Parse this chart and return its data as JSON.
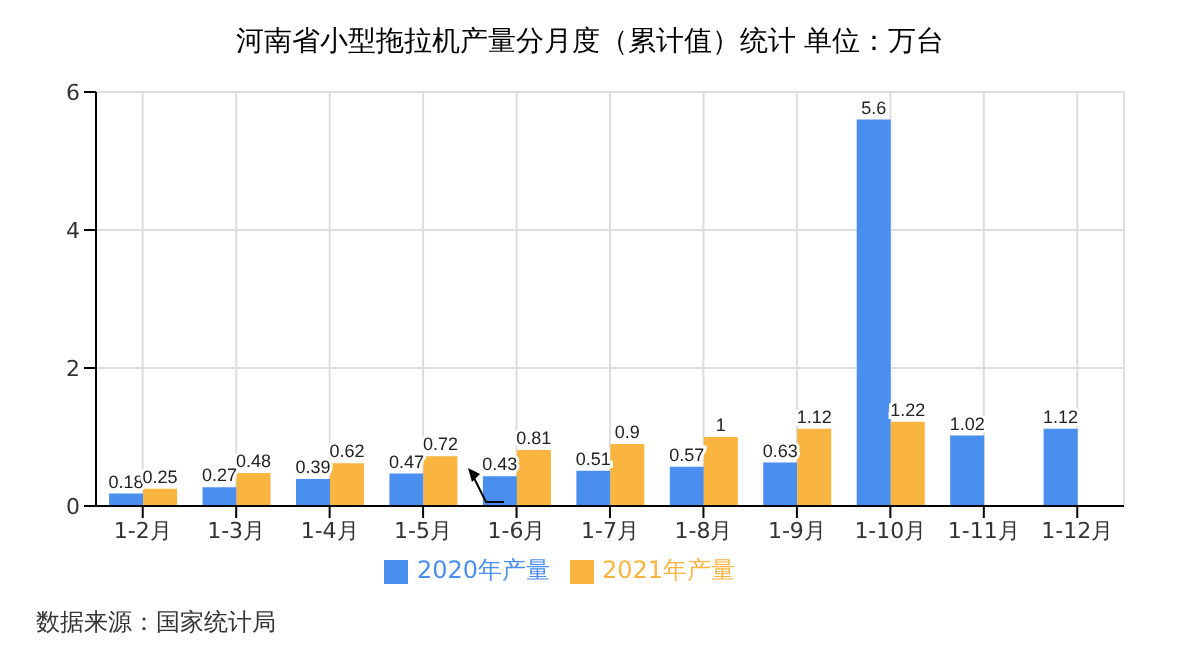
{
  "chart_data": {
    "type": "bar",
    "title": "河南省小型拖拉机产量分月度（累计值）统计 单位：万台",
    "categories": [
      "1-2月",
      "1-3月",
      "1-4月",
      "1-5月",
      "1-6月",
      "1-7月",
      "1-8月",
      "1-9月",
      "1-10月",
      "1-11月",
      "1-12月"
    ],
    "series": [
      {
        "name": "2020年产量",
        "color": "#4a8ef0",
        "values": [
          0.18,
          0.27,
          0.39,
          0.47,
          0.43,
          0.51,
          0.57,
          0.63,
          5.6,
          1.02,
          1.12
        ]
      },
      {
        "name": "2021年产量",
        "color": "#f9b53f",
        "values": [
          0.25,
          0.48,
          0.62,
          0.72,
          0.81,
          0.9,
          1,
          1.12,
          1.22,
          null,
          null
        ]
      }
    ],
    "ylim": [
      0,
      6
    ],
    "yticks": [
      0,
      2,
      4,
      6
    ],
    "grid": true,
    "legend": "bottom",
    "data_labels": true,
    "annotations": [
      "数据来源：国家统计局"
    ]
  }
}
